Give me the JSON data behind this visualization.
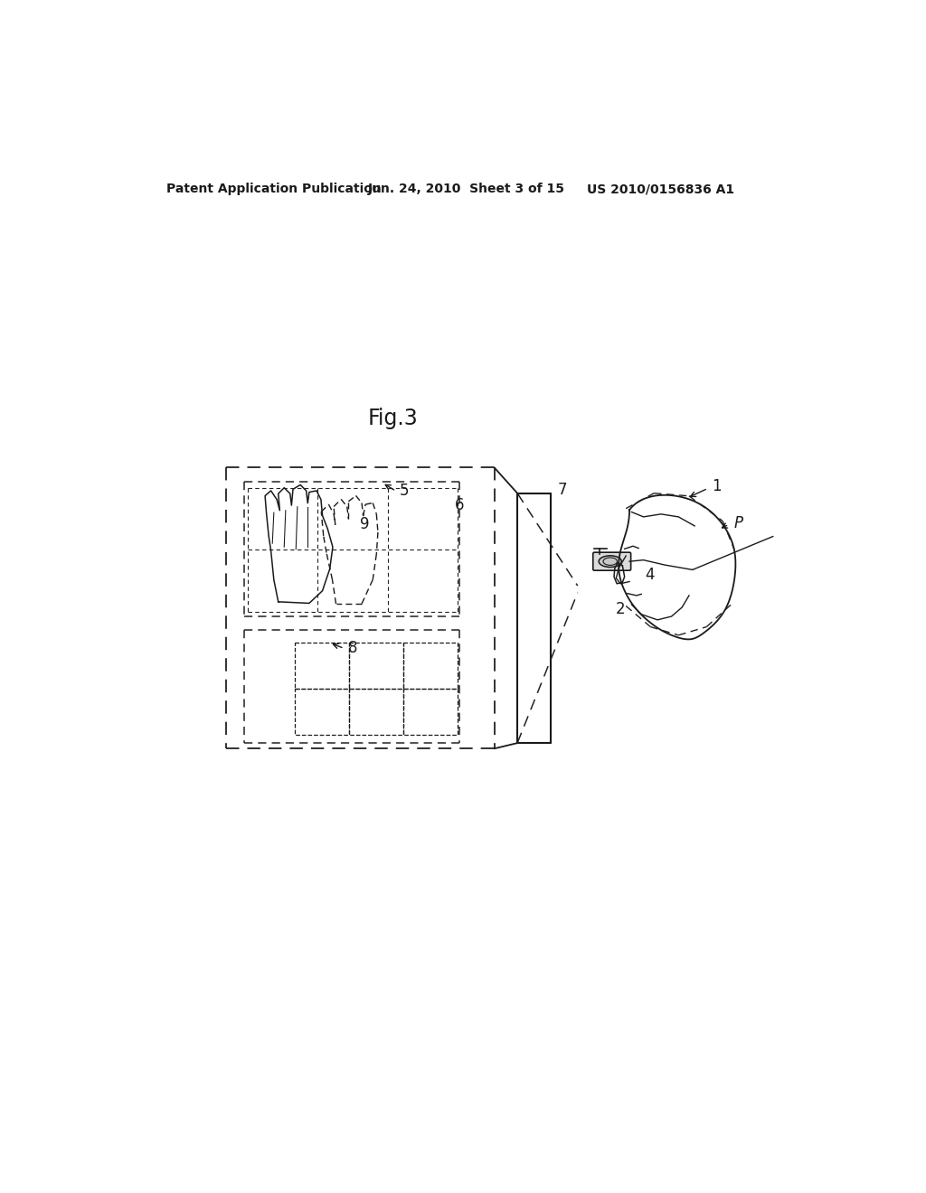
{
  "bg_color": "#ffffff",
  "line_color": "#1a1a1a",
  "header_left": "Patent Application Publication",
  "header_mid": "Jun. 24, 2010  Sheet 3 of 15",
  "header_right": "US 2010/0156836 A1",
  "fig_label": "Fig.3"
}
